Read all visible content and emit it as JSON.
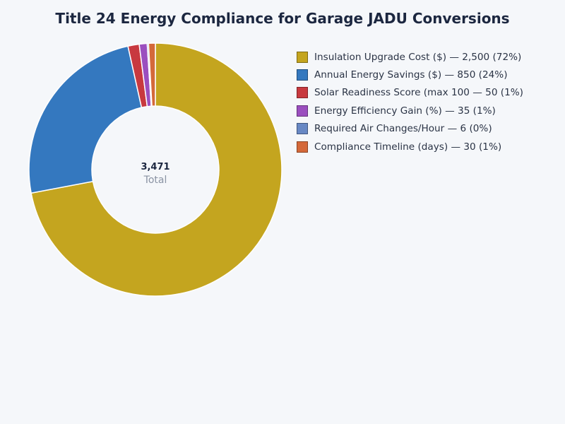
{
  "chart_data": {
    "type": "pie",
    "title": "Title 24 Energy Compliance for Garage JADU Conversions",
    "center_value": "3,471",
    "center_label": "Total",
    "slices": [
      {
        "label": "Insulation Upgrade Cost ($) — 2,500 (72%)",
        "value": 2500,
        "color": "#c4a51f"
      },
      {
        "label": "Annual Energy Savings ($) — 850 (24%)",
        "value": 850,
        "color": "#3478bf"
      },
      {
        "label": "Solar Readiness Score (max 100 — 50 (1%)",
        "value": 50,
        "color": "#c8393f"
      },
      {
        "label": "Energy Efficiency Gain (%) — 35 (1%)",
        "value": 35,
        "color": "#9b4fbf"
      },
      {
        "label": "Required Air Changes/Hour — 6 (0%)",
        "value": 6,
        "color": "#6888c4"
      },
      {
        "label": "Compliance Timeline (days) — 30 (1%)",
        "value": 30,
        "color": "#d4693a"
      }
    ]
  }
}
